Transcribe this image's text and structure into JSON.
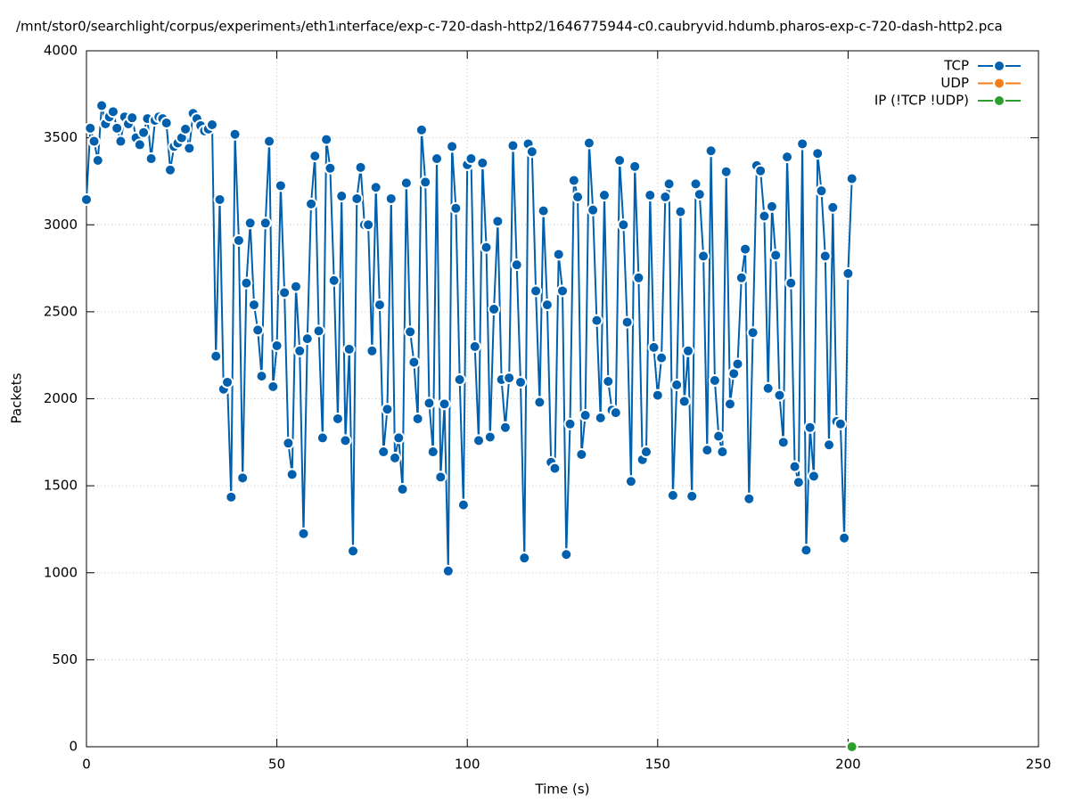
{
  "chart_data": {
    "type": "line",
    "title": "/mnt/stor0/searchlight/corpus/experiment₃/eth1ᵢnterface/exp-c-720-dash-http2/1646775944-c0.caubryvid.hdumb.pharos-exp-c-720-dash-http2.pca",
    "xlabel": "Time (s)",
    "ylabel": "Packets",
    "xlim": [
      0,
      250
    ],
    "xticks": [
      0,
      50,
      100,
      150,
      200,
      250
    ],
    "ylim": [
      0,
      4000
    ],
    "yticks": [
      0,
      500,
      1000,
      1500,
      2000,
      2500,
      3000,
      3500,
      4000
    ],
    "grid": true,
    "legend": "top-right",
    "series": [
      {
        "name": "TCP",
        "color": "#0060ad",
        "x": [
          0,
          1,
          2,
          3,
          4,
          5,
          6,
          7,
          8,
          9,
          10,
          11,
          12,
          13,
          14,
          15,
          16,
          17,
          18,
          19,
          20,
          21,
          22,
          23,
          24,
          25,
          26,
          27,
          28,
          29,
          30,
          31,
          32,
          33,
          34,
          35,
          36,
          37,
          38,
          39,
          40,
          41,
          42,
          43,
          44,
          45,
          46,
          47,
          48,
          49,
          50,
          51,
          52,
          53,
          54,
          55,
          56,
          57,
          58,
          59,
          60,
          61,
          62,
          63,
          64,
          65,
          66,
          67,
          68,
          69,
          70,
          71,
          72,
          73,
          74,
          75,
          76,
          77,
          78,
          79,
          80,
          81,
          82,
          83,
          84,
          85,
          86,
          87,
          88,
          89,
          90,
          91,
          92,
          93,
          94,
          95,
          96,
          97,
          98,
          99,
          100,
          101,
          102,
          103,
          104,
          105,
          106,
          107,
          108,
          109,
          110,
          111,
          112,
          113,
          114,
          115,
          116,
          117,
          118,
          119,
          120,
          121,
          122,
          123,
          124,
          125,
          126,
          127,
          128,
          129,
          130,
          131,
          132,
          133,
          134,
          135,
          136,
          137,
          138,
          139,
          140,
          141,
          142,
          143,
          144,
          145,
          146,
          147,
          148,
          149,
          150,
          151,
          152,
          153,
          154,
          155,
          156,
          157,
          158,
          159,
          160,
          161,
          162,
          163,
          164,
          165,
          166,
          167,
          168,
          169,
          170,
          171,
          172,
          173,
          174,
          175,
          176,
          177,
          178,
          179,
          180,
          181,
          182,
          183,
          184,
          185,
          186,
          187,
          188,
          189,
          190,
          191,
          192,
          193,
          194,
          195,
          196,
          197,
          198,
          199,
          200,
          201
        ],
        "values": [
          3145,
          3555,
          3480,
          3370,
          3685,
          3580,
          3620,
          3650,
          3555,
          3480,
          3620,
          3580,
          3615,
          3500,
          3460,
          3530,
          3610,
          3380,
          3600,
          3620,
          3610,
          3585,
          3315,
          3450,
          3470,
          3500,
          3550,
          3440,
          3640,
          3610,
          3570,
          3540,
          3550,
          3575,
          2245,
          3145,
          2055,
          2095,
          1435,
          3520,
          2910,
          1545,
          2665,
          3010,
          2540,
          2395,
          2130,
          3010,
          3480,
          2070,
          2305,
          3225,
          2610,
          1745,
          1565,
          2645,
          2275,
          1225,
          2345,
          3120,
          3395,
          2390,
          1775,
          3490,
          3325,
          2680,
          1885,
          3165,
          1760,
          2285,
          1125,
          3150,
          3330,
          3000,
          3000,
          2275,
          3215,
          2540,
          1695,
          1940,
          3150,
          1660,
          1775,
          1480,
          3240,
          2385,
          2210,
          1885,
          3545,
          3245,
          1975,
          1695,
          3380,
          1550,
          1970,
          1010,
          3450,
          3095,
          2110,
          1390,
          3345,
          3380,
          2300,
          1760,
          3355,
          2870,
          1780,
          2515,
          3020,
          2110,
          1835,
          2120,
          3455,
          2770,
          2095,
          1085,
          3465,
          3420,
          2620,
          1980,
          3080,
          2540,
          1635,
          1600,
          2830,
          2620,
          1105,
          1855,
          3255,
          3160,
          1680,
          1905,
          3470,
          3085,
          2450,
          1890,
          3170,
          2100,
          1935,
          1920,
          3370,
          3000,
          2440,
          1525,
          3335,
          2695,
          1650,
          1695,
          3170,
          2295,
          2020,
          2235,
          3160,
          3235,
          1445,
          2080,
          3075,
          1985,
          2275,
          1440,
          3235,
          3175,
          2820,
          1705,
          3425,
          2105,
          1785,
          1695,
          3305,
          1970,
          2145,
          2200,
          2695,
          2860,
          1425,
          2380,
          3340,
          3310,
          3050,
          2060,
          3105,
          2825,
          2020,
          1750,
          3390,
          2665,
          1610,
          1520,
          3465,
          1130,
          1835,
          1555,
          3410,
          3195,
          2820,
          1735,
          3100,
          1870,
          1855,
          1200,
          2720,
          3265
        ]
      },
      {
        "name": "UDP",
        "color": "#f57f17",
        "x": [],
        "values": []
      },
      {
        "name": "IP (!TCP  !UDP)",
        "color": "#2ca02c",
        "x": [
          201
        ],
        "values": [
          0
        ]
      }
    ]
  }
}
